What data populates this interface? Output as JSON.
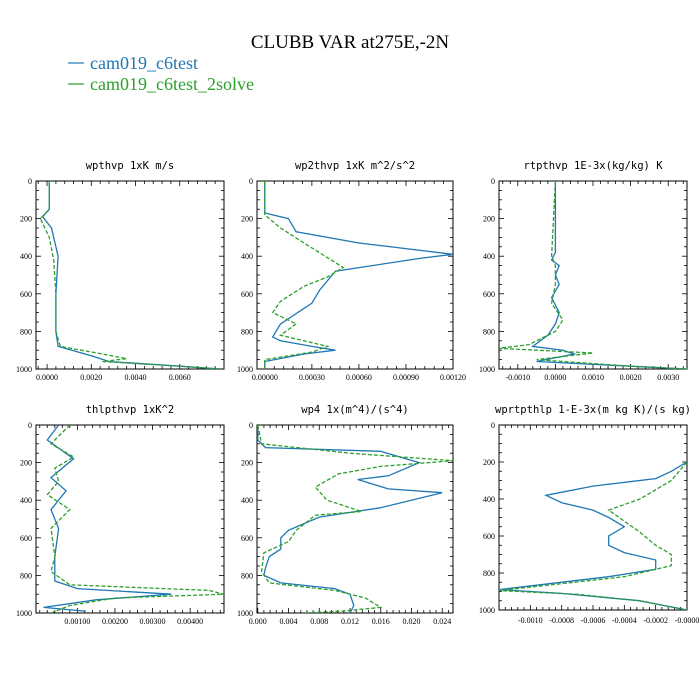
{
  "figure": {
    "title": "CLUBB VAR at275E,-2N",
    "legend": {
      "placement": "top-left",
      "items": [
        {
          "label": "cam019_c6test",
          "color": "#1f77b4",
          "dash": "solid"
        },
        {
          "label": "cam019_c6test_2solve",
          "color": "#2ca02c",
          "dash": "dashed"
        }
      ]
    }
  },
  "chart_data": [
    {
      "type": "line",
      "title": "wpthvp  1xK m/s",
      "xlim": [
        -0.0005,
        0.008
      ],
      "ylim": [
        0,
        1000
      ],
      "y_inverted": true,
      "xticks": [
        0,
        0.002,
        0.004,
        0.006
      ],
      "xtick_labels": [
        "0.0000",
        "0.0020",
        "0.0040",
        "0.0060"
      ],
      "yticks": [
        0,
        200,
        400,
        600,
        800,
        1000
      ],
      "ytick_labels": [
        "0",
        "200",
        "400",
        "600",
        "800",
        "1000"
      ],
      "grid": false,
      "series": [
        {
          "name": "cam019_c6test",
          "color": "#1f77b4",
          "points": [
            [
              0.0001,
              0
            ],
            [
              0.0001,
              150
            ],
            [
              -0.0002,
              190
            ],
            [
              0.0002,
              250
            ],
            [
              0.0005,
              400
            ],
            [
              0.0004,
              600
            ],
            [
              0.0004,
              800
            ],
            [
              0.0005,
              880
            ],
            [
              0.002,
              930
            ],
            [
              0.0028,
              960
            ],
            [
              0.006,
              985
            ],
            [
              0.0078,
              1000
            ]
          ]
        },
        {
          "name": "cam019_c6test_2solve",
          "color": "#2ca02c",
          "points": [
            [
              0.0001,
              0
            ],
            [
              0.0001,
              150
            ],
            [
              -0.0003,
              200
            ],
            [
              0.0001,
              300
            ],
            [
              0.0003,
              420
            ],
            [
              0.0004,
              600
            ],
            [
              0.0004,
              800
            ],
            [
              0.0006,
              880
            ],
            [
              0.0025,
              920
            ],
            [
              0.0036,
              945
            ],
            [
              0.0025,
              960
            ],
            [
              0.006,
              985
            ],
            [
              0.0079,
              1000
            ]
          ]
        }
      ]
    },
    {
      "type": "line",
      "title": "wp2thvp  1xK m^2/s^2",
      "xlim": [
        -5e-05,
        0.0012
      ],
      "ylim": [
        0,
        1000
      ],
      "y_inverted": true,
      "xticks": [
        0,
        0.0003,
        0.0006,
        0.0009,
        0.0012
      ],
      "xtick_labels": [
        "0.00000",
        "0.00030",
        "0.00060",
        "0.00090",
        "0.00120"
      ],
      "yticks": [
        0,
        200,
        400,
        600,
        800,
        1000
      ],
      "ytick_labels": [
        "0",
        "200",
        "400",
        "600",
        "800",
        "1000"
      ],
      "grid": false,
      "series": [
        {
          "name": "cam019_c6test",
          "color": "#1f77b4",
          "points": [
            [
              0,
              0
            ],
            [
              0,
              170
            ],
            [
              0.00015,
              200
            ],
            [
              0.0002,
              270
            ],
            [
              0.0006,
              330
            ],
            [
              0.0012,
              390
            ],
            [
              0.001,
              410
            ],
            [
              0.00045,
              480
            ],
            [
              0.00035,
              580
            ],
            [
              0.0003,
              650
            ],
            [
              0.0001,
              760
            ],
            [
              5e-05,
              830
            ],
            [
              0.0001,
              850
            ],
            [
              0.0003,
              880
            ],
            [
              0.00045,
              900
            ],
            [
              0.00025,
              920
            ],
            [
              0,
              960
            ],
            [
              0,
              1000
            ]
          ]
        },
        {
          "name": "cam019_c6test_2solve",
          "color": "#2ca02c",
          "points": [
            [
              0,
              0
            ],
            [
              0,
              180
            ],
            [
              0.0001,
              250
            ],
            [
              0.00025,
              330
            ],
            [
              0.0005,
              460
            ],
            [
              0.0004,
              510
            ],
            [
              0.00025,
              560
            ],
            [
              0.0001,
              640
            ],
            [
              5e-05,
              700
            ],
            [
              0.0002,
              760
            ],
            [
              0.0001,
              820
            ],
            [
              0.0004,
              880
            ],
            [
              0.0003,
              910
            ],
            [
              0,
              950
            ],
            [
              0,
              1000
            ]
          ]
        }
      ]
    },
    {
      "type": "line",
      "title": "rtpthvp  1E-3x(kg/kg) K",
      "xlim": [
        -0.0015,
        0.0035
      ],
      "ylim": [
        0,
        1000
      ],
      "y_inverted": true,
      "xticks": [
        -0.001,
        0,
        0.001,
        0.002,
        0.003
      ],
      "xtick_labels": [
        "-0.0010",
        "0.0000",
        "0.0010",
        "0.0020",
        "0.0030"
      ],
      "yticks": [
        0,
        200,
        400,
        600,
        800,
        1000
      ],
      "ytick_labels": [
        "0",
        "200",
        "400",
        "600",
        "800",
        "1000"
      ],
      "grid": false,
      "series": [
        {
          "name": "cam019_c6test",
          "color": "#1f77b4",
          "points": [
            [
              0,
              0
            ],
            [
              0,
              380
            ],
            [
              -0.0001,
              420
            ],
            [
              0.0001,
              450
            ],
            [
              0,
              500
            ],
            [
              0.0001,
              550
            ],
            [
              -0.0001,
              620
            ],
            [
              0.0001,
              700
            ],
            [
              0,
              760
            ],
            [
              -0.0002,
              820
            ],
            [
              -0.0006,
              880
            ],
            [
              0.0002,
              900
            ],
            [
              0.0005,
              920
            ],
            [
              -0.0005,
              960
            ],
            [
              0.002,
              985
            ],
            [
              0.0035,
              1000
            ]
          ]
        },
        {
          "name": "cam019_c6test_2solve",
          "color": "#2ca02c",
          "points": [
            [
              0,
              0
            ],
            [
              -0.0001,
              400
            ],
            [
              0,
              450
            ],
            [
              0,
              550
            ],
            [
              -0.0001,
              650
            ],
            [
              0.0002,
              740
            ],
            [
              0,
              800
            ],
            [
              -0.0007,
              870
            ],
            [
              -0.0015,
              890
            ],
            [
              0.001,
              915
            ],
            [
              -0.0005,
              950
            ],
            [
              0.002,
              985
            ],
            [
              0.0035,
              1000
            ]
          ]
        }
      ]
    },
    {
      "type": "line",
      "title": "thlpthvp  1xK^2",
      "xlim": [
        -0.0001,
        0.0049
      ],
      "ylim": [
        0,
        1000
      ],
      "y_inverted": true,
      "xticks": [
        0.001,
        0.002,
        0.003,
        0.004
      ],
      "xtick_labels": [
        "0.00100",
        "0.00200",
        "0.00300",
        "0.00400"
      ],
      "yticks": [
        0,
        200,
        400,
        600,
        800,
        1000
      ],
      "ytick_labels": [
        "0",
        "200",
        "400",
        "600",
        "800",
        "1000"
      ],
      "grid": false,
      "series": [
        {
          "name": "cam019_c6test",
          "color": "#1f77b4",
          "points": [
            [
              0.0005,
              0
            ],
            [
              0.0002,
              80
            ],
            [
              0.0009,
              180
            ],
            [
              0.0003,
              280
            ],
            [
              0.0007,
              350
            ],
            [
              0.0003,
              450
            ],
            [
              0.0005,
              550
            ],
            [
              0.0004,
              700
            ],
            [
              0.0004,
              830
            ],
            [
              0.001,
              870
            ],
            [
              0.0035,
              900
            ],
            [
              0.0015,
              930
            ],
            [
              0.0001,
              970
            ],
            [
              0.0012,
              990
            ]
          ]
        },
        {
          "name": "cam019_c6test_2solve",
          "color": "#2ca02c",
          "points": [
            [
              0.0008,
              0
            ],
            [
              0.0003,
              100
            ],
            [
              0.0009,
              170
            ],
            [
              0.0004,
              230
            ],
            [
              0.0005,
              300
            ],
            [
              0.0002,
              370
            ],
            [
              0.0008,
              450
            ],
            [
              0.0003,
              550
            ],
            [
              0.0004,
              700
            ],
            [
              0.0003,
              780
            ],
            [
              0.0008,
              850
            ],
            [
              0.0045,
              880
            ],
            [
              0.0049,
              900
            ],
            [
              0.002,
              920
            ],
            [
              0.0008,
              960
            ],
            [
              0.0003,
              1000
            ]
          ]
        }
      ]
    },
    {
      "type": "line",
      "title": "wp4  1x(m^4)/(s^4)",
      "xlim": [
        -0.0001,
        0.0254
      ],
      "ylim": [
        0,
        1000
      ],
      "y_inverted": true,
      "xticks": [
        0,
        0.004,
        0.008,
        0.012,
        0.016,
        0.02,
        0.024
      ],
      "xtick_labels": [
        "0.000",
        "0.004",
        "0.008",
        "0.012",
        "0.016",
        "0.020",
        "0.024"
      ],
      "yticks": [
        0,
        200,
        400,
        600,
        800,
        1000
      ],
      "ytick_labels": [
        "0",
        "200",
        "400",
        "600",
        "800",
        "1000"
      ],
      "grid": false,
      "series": [
        {
          "name": "cam019_c6test",
          "color": "#1f77b4",
          "points": [
            [
              0,
              0
            ],
            [
              0,
              80
            ],
            [
              0.001,
              120
            ],
            [
              0.016,
              140
            ],
            [
              0.021,
              200
            ],
            [
              0.017,
              270
            ],
            [
              0.013,
              290
            ],
            [
              0.017,
              340
            ],
            [
              0.024,
              360
            ],
            [
              0.016,
              440
            ],
            [
              0.008,
              490
            ],
            [
              0.004,
              560
            ],
            [
              0.003,
              600
            ],
            [
              0.003,
              660
            ],
            [
              0.0015,
              700
            ],
            [
              0.001,
              760
            ],
            [
              0.0008,
              800
            ],
            [
              0.003,
              840
            ],
            [
              0.01,
              870
            ],
            [
              0.012,
              900
            ],
            [
              0.0125,
              960
            ],
            [
              0.012,
              1000
            ]
          ]
        },
        {
          "name": "cam019_c6test_2solve",
          "color": "#2ca02c",
          "points": [
            [
              0,
              0
            ],
            [
              0.0005,
              100
            ],
            [
              0.012,
              150
            ],
            [
              0.0254,
              190
            ],
            [
              0.016,
              220
            ],
            [
              0.0105,
              260
            ],
            [
              0.0075,
              330
            ],
            [
              0.009,
              400
            ],
            [
              0.0135,
              460
            ],
            [
              0.0075,
              480
            ],
            [
              0.005,
              560
            ],
            [
              0.004,
              620
            ],
            [
              0.0008,
              680
            ],
            [
              0.0005,
              780
            ],
            [
              0.0015,
              840
            ],
            [
              0.01,
              880
            ],
            [
              0.014,
              920
            ],
            [
              0.016,
              970
            ],
            [
              0.011,
              990
            ],
            [
              0.006,
              1000
            ]
          ]
        }
      ]
    },
    {
      "type": "line",
      "title": "wprtpthlp  1-E-3x(m kg K)/(s kg)",
      "xlim": [
        -0.0012,
        0.0
      ],
      "ylim": [
        0,
        1000
      ],
      "y_inverted": true,
      "xticks": [
        -0.001,
        -0.0008,
        -0.0006,
        -0.0004,
        -0.0002,
        0.0
      ],
      "xtick_labels": [
        "-0.0010",
        "-0.0008",
        "-0.0006",
        "-0.0004",
        "-0.0002",
        "-0.0000"
      ],
      "yticks": [
        0,
        200,
        400,
        600,
        800,
        1000
      ],
      "ytick_labels": [
        "0",
        "200",
        "400",
        "600",
        "800",
        "1000"
      ],
      "grid": false,
      "series": [
        {
          "name": "cam019_c6test",
          "color": "#1f77b4",
          "points": [
            [
              0,
              200
            ],
            [
              -0.0001,
              250
            ],
            [
              -0.0002,
              290
            ],
            [
              -0.0006,
              330
            ],
            [
              -0.0009,
              380
            ],
            [
              -0.0008,
              420
            ],
            [
              -0.0006,
              460
            ],
            [
              -0.0005,
              500
            ],
            [
              -0.0004,
              550
            ],
            [
              -0.0005,
              600
            ],
            [
              -0.0005,
              650
            ],
            [
              -0.0004,
              690
            ],
            [
              -0.0002,
              730
            ],
            [
              -0.0002,
              780
            ],
            [
              -0.0005,
              820
            ],
            [
              -0.0012,
              890
            ],
            [
              -0.0008,
              910
            ],
            [
              -0.0003,
              950
            ],
            [
              0,
              1000
            ]
          ]
        },
        {
          "name": "cam019_c6test_2solve",
          "color": "#2ca02c",
          "points": [
            [
              0,
              200
            ],
            [
              -0.0001,
              300
            ],
            [
              -0.0003,
              400
            ],
            [
              -0.0005,
              460
            ],
            [
              -0.0004,
              520
            ],
            [
              -0.0003,
              580
            ],
            [
              -0.0002,
              650
            ],
            [
              -0.0001,
              700
            ],
            [
              -0.0001,
              760
            ],
            [
              -0.0004,
              820
            ],
            [
              -0.0012,
              895
            ],
            [
              -0.0007,
              915
            ],
            [
              -0.0003,
              950
            ],
            [
              0,
              1000
            ]
          ]
        }
      ]
    }
  ]
}
